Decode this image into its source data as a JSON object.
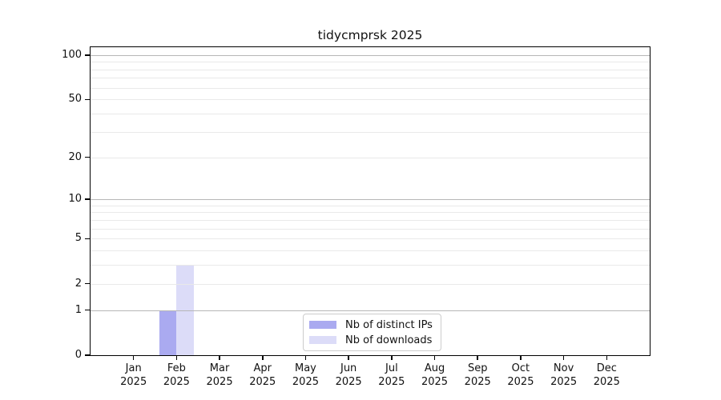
{
  "title": "tidycmprsk 2025",
  "chart_data": {
    "type": "bar",
    "categories": [
      "Jan 2025",
      "Feb 2025",
      "Mar 2025",
      "Apr 2025",
      "May 2025",
      "Jun 2025",
      "Jul 2025",
      "Aug 2025",
      "Sep 2025",
      "Oct 2025",
      "Nov 2025",
      "Dec 2025"
    ],
    "series": [
      {
        "name": "Nb of distinct IPs",
        "color": "#aaaaf0",
        "values": [
          0,
          1,
          0,
          0,
          0,
          0,
          0,
          0,
          0,
          0,
          0,
          0
        ]
      },
      {
        "name": "Nb of downloads",
        "color": "#dcdcf8",
        "values": [
          0,
          3,
          0,
          0,
          0,
          0,
          0,
          0,
          0,
          0,
          0,
          0
        ]
      }
    ],
    "title": "tidycmprsk 2025",
    "xlabel": "",
    "ylabel": "",
    "y_axis": {
      "scale": "log1p",
      "ticks": [
        0,
        1,
        2,
        5,
        10,
        20,
        50,
        100
      ],
      "ylim": [
        0,
        113
      ],
      "major_gridlines": [
        1,
        10,
        100
      ],
      "minor_gridlines": [
        2,
        3,
        4,
        5,
        6,
        7,
        8,
        9,
        20,
        30,
        40,
        50,
        60,
        70,
        80,
        90
      ],
      "grid": true
    },
    "legend_position": "lower center"
  },
  "colors": {
    "axis": "#000000",
    "grid_major": "#b6b6b6",
    "grid_minor": "#e9e9e9",
    "background": "#ffffff"
  }
}
